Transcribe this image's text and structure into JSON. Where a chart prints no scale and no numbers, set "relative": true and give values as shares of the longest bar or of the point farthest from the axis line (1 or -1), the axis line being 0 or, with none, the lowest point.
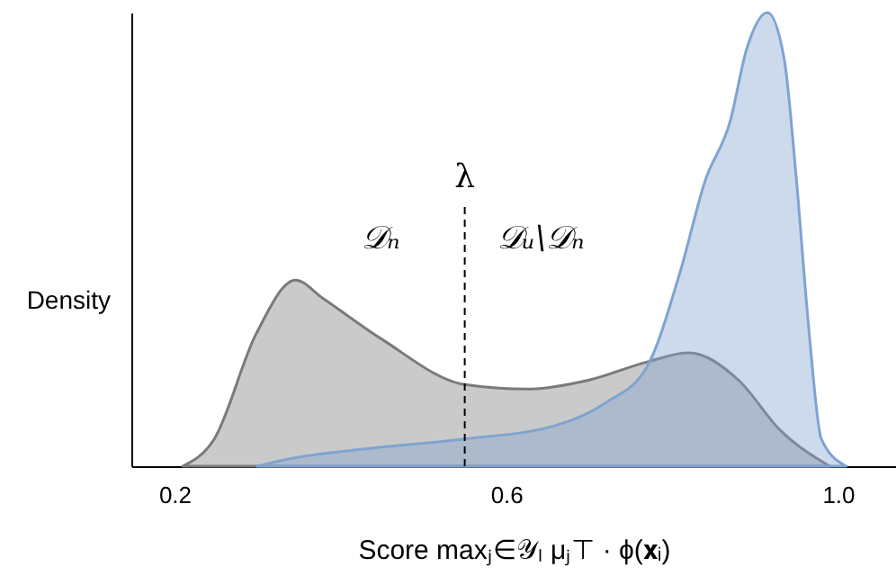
{
  "chart_data": {
    "type": "area",
    "relative": true,
    "xlabel": "Score   maxⱼ∈𝒴ₗ μⱼ⊤ · ϕ(𝐱ᵢ)",
    "ylabel": "Density",
    "xlim": [
      0.148,
      1.07
    ],
    "xticks": [
      0.2,
      0.6,
      {
        "value": 1,
        "label": "1.0"
      }
    ],
    "grid": false,
    "series": [
      {
        "color": "#7a7a7a",
        "x": [
          0.21,
          0.248,
          0.298,
          0.346,
          0.379,
          0.45,
          0.55,
          0.625,
          0.7,
          0.77,
          0.82,
          0.88,
          0.93,
          0.99
        ],
        "values": [
          0,
          0.06,
          0.29,
          0.41,
          0.37,
          0.28,
          0.18,
          0.17,
          0.19,
          0.23,
          0.25,
          0.19,
          0.08,
          0
        ]
      },
      {
        "color": "#7fa3d0",
        "x": [
          0.3,
          0.335,
          0.44,
          0.55,
          0.66,
          0.72,
          0.77,
          0.81,
          0.84,
          0.87,
          0.89,
          0.915,
          0.935,
          0.95,
          0.965,
          0.98,
          1.01
        ],
        "values": [
          0,
          0.015,
          0.04,
          0.06,
          0.09,
          0.14,
          0.22,
          0.43,
          0.63,
          0.76,
          0.92,
          1,
          0.9,
          0.63,
          0.3,
          0.06,
          0
        ]
      }
    ],
    "ref_lines": [
      {
        "axis": "x",
        "value": 0.55,
        "label": "λ",
        "line_style": "dashed"
      }
    ],
    "annotations": [
      "𝒟ₙ",
      "𝒟ᵤ\\𝒟ₙ"
    ]
  }
}
